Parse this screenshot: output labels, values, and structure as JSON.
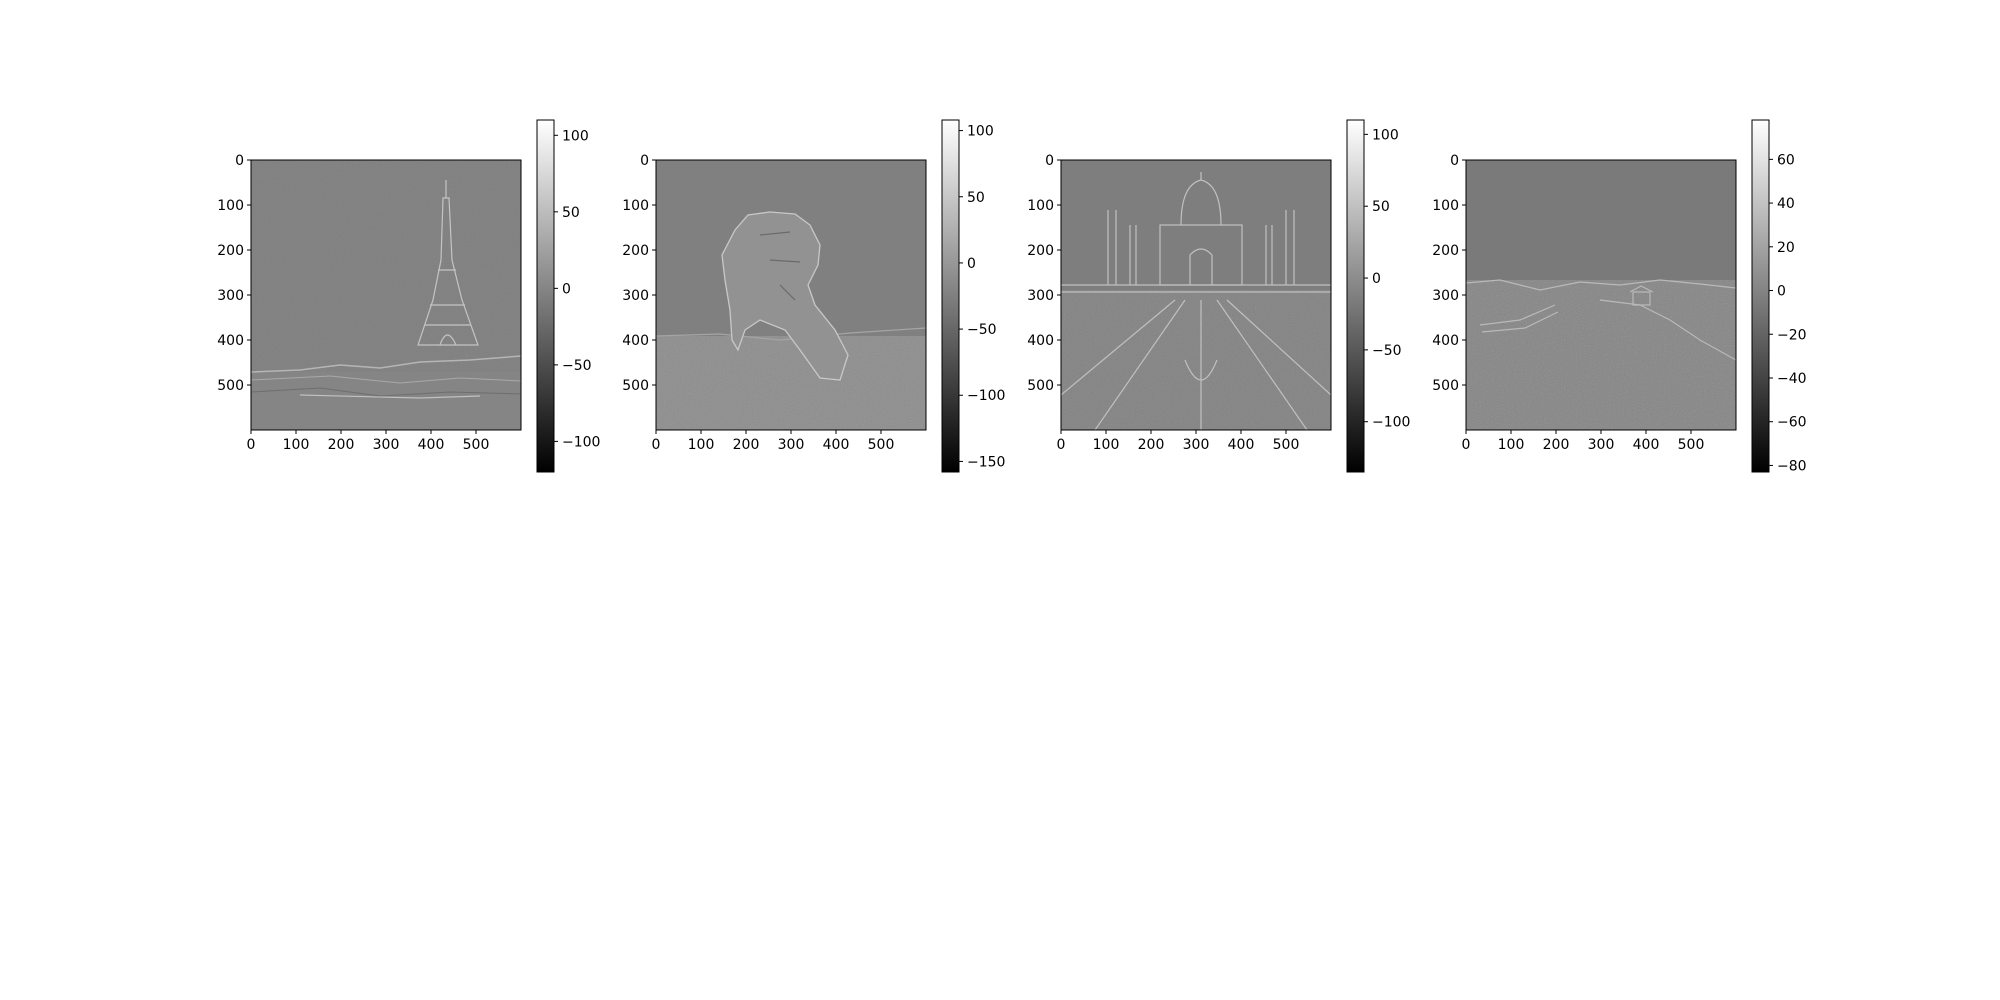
{
  "chart_data": [
    {
      "type": "heatmap",
      "colormap": "gray",
      "image_subject": "Eiffel Tower edge-filtered photograph",
      "x_ticks": [
        0,
        100,
        200,
        300,
        400,
        500
      ],
      "y_ticks": [
        0,
        100,
        200,
        300,
        400,
        500
      ],
      "xlim": [
        0,
        600
      ],
      "ylim": [
        600,
        0
      ],
      "colorbar": {
        "min": -120,
        "max": 110,
        "ticks": [
          100,
          50,
          0,
          -50,
          -100
        ]
      }
    },
    {
      "type": "heatmap",
      "colormap": "gray",
      "image_subject": "Great Sphinx edge-filtered photograph",
      "x_ticks": [
        0,
        100,
        200,
        300,
        400,
        500
      ],
      "y_ticks": [
        0,
        100,
        200,
        300,
        400,
        500
      ],
      "xlim": [
        0,
        600
      ],
      "ylim": [
        600,
        0
      ],
      "colorbar": {
        "min": -158,
        "max": 108,
        "ticks": [
          100,
          50,
          0,
          -50,
          -100,
          -150
        ]
      }
    },
    {
      "type": "heatmap",
      "colormap": "gray",
      "image_subject": "Taj Mahal edge-filtered photograph",
      "x_ticks": [
        0,
        100,
        200,
        300,
        400,
        500
      ],
      "y_ticks": [
        0,
        100,
        200,
        300,
        400,
        500
      ],
      "xlim": [
        0,
        600
      ],
      "ylim": [
        600,
        0
      ],
      "colorbar": {
        "min": -135,
        "max": 110,
        "ticks": [
          100,
          50,
          0,
          -50,
          -100
        ]
      }
    },
    {
      "type": "heatmap",
      "colormap": "gray",
      "image_subject": "Great Wall edge-filtered photograph",
      "x_ticks": [
        0,
        100,
        200,
        300,
        400,
        500
      ],
      "y_ticks": [
        0,
        100,
        200,
        300,
        400,
        500
      ],
      "xlim": [
        0,
        600
      ],
      "ylim": [
        600,
        0
      ],
      "colorbar": {
        "min": -83,
        "max": 78,
        "ticks": [
          60,
          40,
          20,
          0,
          -20,
          -40,
          -60,
          -80
        ]
      }
    }
  ]
}
